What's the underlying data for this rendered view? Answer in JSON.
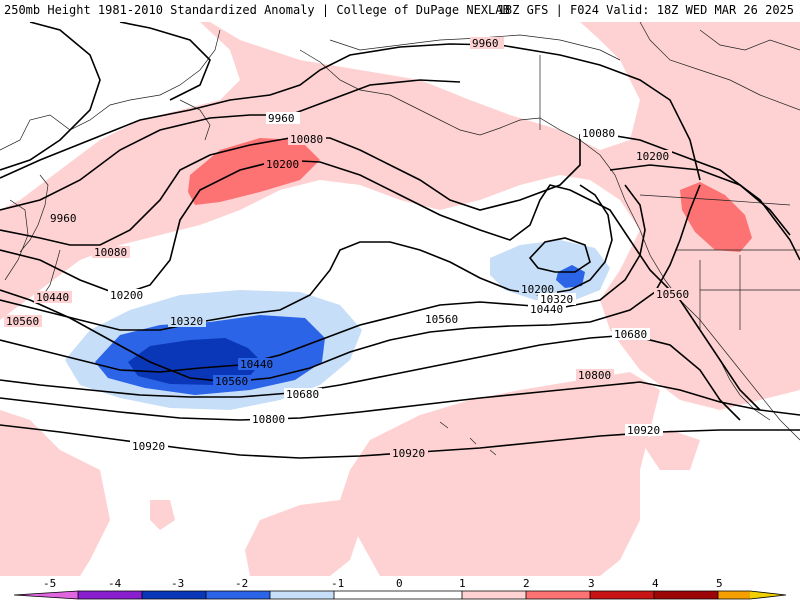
{
  "header": {
    "title_left": "250mb Height 1981-2010 Standardized Anomaly | College of DuPage NEXLAB",
    "title_right": "18Z GFS | F024 Valid: 18Z WED MAR 26 2025"
  },
  "colors": {
    "neg5": "#e066e0",
    "neg4": "#8a1fd0",
    "neg3": "#0a36b8",
    "neg2": "#2c64e8",
    "neg1": "#c6def7",
    "zero": "#ffffff",
    "pos1": "#fed2d2",
    "pos2": "#fd7272",
    "pos3": "#c81414",
    "pos4": "#9c0606",
    "pos5": "#f5a000",
    "pos5b": "#f0d000"
  },
  "contour_labels": [
    "9960",
    "9960",
    "9960",
    "10080",
    "10080",
    "10080",
    "10200",
    "10200",
    "10200",
    "10200",
    "10320",
    "10320",
    "10440",
    "10440",
    "10440",
    "10560",
    "10560",
    "10560",
    "10560",
    "10680",
    "10680",
    "10800",
    "10800",
    "10920",
    "10920",
    "10920"
  ],
  "colorbar": {
    "ticks": [
      "-5",
      "-4",
      "-3",
      "-2",
      "-1",
      "0",
      "1",
      "2",
      "3",
      "4",
      "5"
    ]
  }
}
